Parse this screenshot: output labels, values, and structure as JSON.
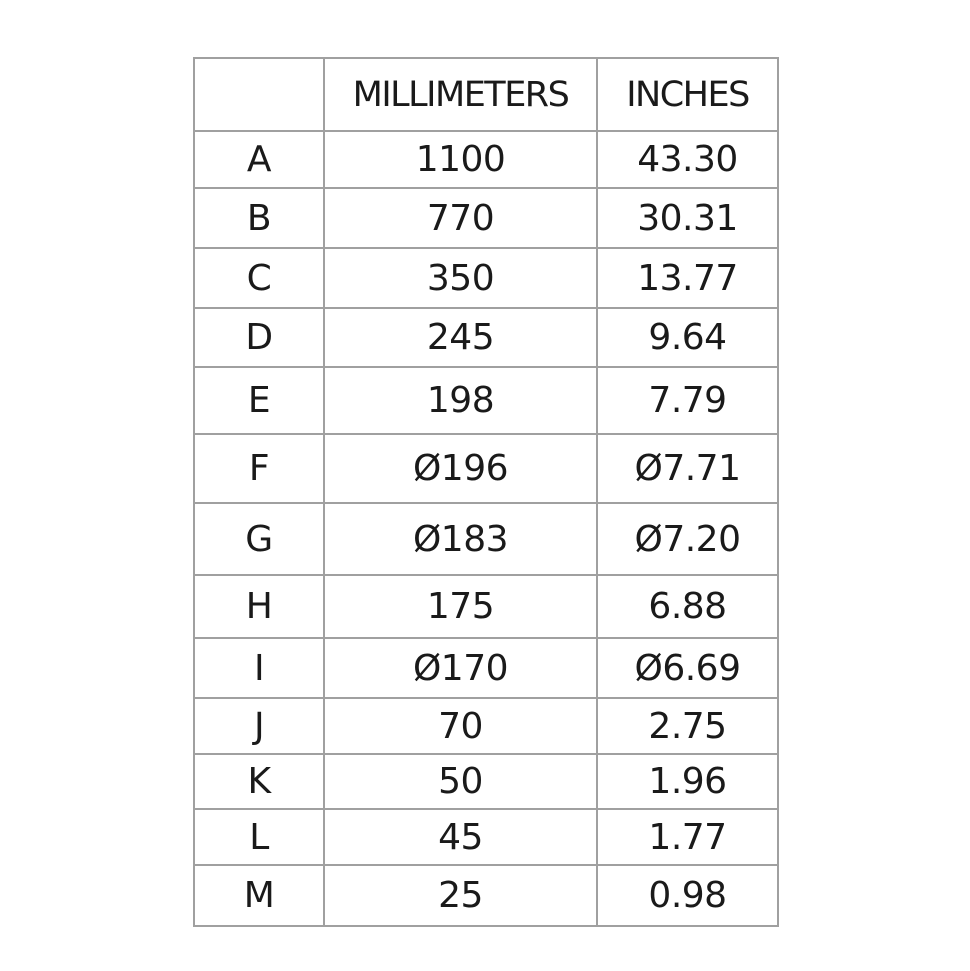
{
  "table": {
    "headers": [
      "",
      "MILLIMETERS",
      "INCHES"
    ],
    "rows": [
      [
        "A",
        "1100",
        "43.30"
      ],
      [
        "B",
        "770",
        "30.31"
      ],
      [
        "C",
        "350",
        "13.77"
      ],
      [
        "D",
        "245",
        "9.64"
      ],
      [
        "E",
        "198",
        "7.79"
      ],
      [
        "F",
        "Ø196",
        "Ø7.71"
      ],
      [
        "G",
        "Ø183",
        "Ø7.20"
      ],
      [
        "H",
        "175",
        "6.88"
      ],
      [
        "I",
        "Ø170",
        "Ø6.69"
      ],
      [
        "J",
        "70",
        "2.75"
      ],
      [
        "K",
        "50",
        "1.96"
      ],
      [
        "L",
        "45",
        "1.77"
      ],
      [
        "M",
        "25",
        "0.98"
      ]
    ]
  }
}
